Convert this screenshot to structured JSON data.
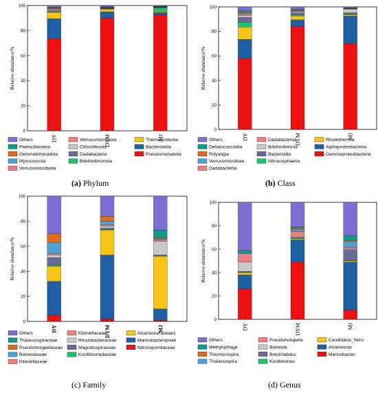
{
  "colors": {
    "Others": "#7b6fd4",
    "Patescibacteria": "#0f9b8a",
    "Gemmatimonadota": "#e06c1f",
    "Myxococcota": "#4f9fd3",
    "Verrucomicrobiota": "#f08080",
    "Chloroflexota": "#c8c8c8",
    "Dadabacteria": "#6a6a9a",
    "Bdellovibrionota": "#19c46b",
    "Thermoproteota": "#f5c518",
    "Bacteroidota": "#1f5fa3",
    "Pseudomonadota": "#ee1111",
    "Dehalococcoidia": "#0f9b8a",
    "Polyangia": "#e06c1f",
    "Verrucomicrobiae": "#4f9fd3",
    "Dadabacteriia": "#f08080",
    "Bdellovibrionia": "#c8c8c8",
    "Bacteroidia": "#6a6a9a",
    "Nitrososphaeria": "#19c46b",
    "Rhodothermia": "#f5c518",
    "Alphaproteobacteria": "#1f5fa3",
    "Gammaproteobacteria": "#ee1111"
  },
  "captions": {
    "a_letter": "(a)",
    "a_text": " Phylum",
    "b_letter": "(b)",
    "b_text": " Class",
    "c": "(c) Family",
    "d": "(d) Genus"
  },
  "chart_data": [
    {
      "type": "bar",
      "stacked": true,
      "panel": "a",
      "categories": [
        "DY",
        "DYM",
        "MJ"
      ],
      "ylabel": "Relative abundance/%",
      "ylim": [
        0,
        100
      ],
      "yticks": [
        0,
        20,
        40,
        60,
        80,
        100
      ],
      "series": [
        {
          "name": "Pseudomonadota",
          "values": [
            73.5,
            90,
            92.5
          ]
        },
        {
          "name": "Bacteroidota",
          "values": [
            16,
            5,
            2
          ]
        },
        {
          "name": "Thermoproteota",
          "values": [
            5,
            2,
            1
          ]
        },
        {
          "name": "Bdellovibrionota",
          "values": [
            0.6,
            0.4,
            2.8
          ]
        },
        {
          "name": "Dadabacteria",
          "values": [
            0.6,
            0.3,
            0.1
          ]
        },
        {
          "name": "Chloroflexota",
          "values": [
            0.7,
            0.3,
            0.2
          ]
        },
        {
          "name": "Verrucomicrobiota",
          "values": [
            0.9,
            0.3,
            0.2
          ]
        },
        {
          "name": "Myxococcota",
          "values": [
            0.5,
            0.2,
            0.2
          ]
        },
        {
          "name": "Gemmatimonadota",
          "values": [
            0.5,
            0.2,
            0.2
          ]
        },
        {
          "name": "Patescibacteria",
          "values": [
            0.5,
            0.3,
            0.2
          ]
        },
        {
          "name": "Others",
          "values": [
            1.2,
            1,
            0.6
          ]
        }
      ],
      "legend": [
        [
          "Others",
          "Verrucomicrobiota",
          "Thermoproteota"
        ],
        [
          "Patescibacteria",
          "Chloroflexota",
          "Bacteroidota"
        ],
        [
          "Gemmatimonadota",
          "Dadabacteria",
          "Pseudomonadota"
        ],
        [
          "Myxococcota",
          "Bdellovibrionota",
          ""
        ],
        [
          "Verrucomicrobiota",
          "",
          ""
        ]
      ]
    },
    {
      "type": "bar",
      "stacked": true,
      "panel": "b",
      "categories": [
        "DY",
        "DYM",
        "MJ"
      ],
      "ylabel": "Relative abundance/%",
      "ylim": [
        0,
        100
      ],
      "yticks": [
        0,
        20,
        40,
        60,
        80,
        100
      ],
      "series": [
        {
          "name": "Gammaproteobacteria",
          "values": [
            58,
            84,
            70
          ]
        },
        {
          "name": "Alphaproteobacteria",
          "values": [
            15.5,
            5.5,
            22.5
          ]
        },
        {
          "name": "Rhodothermia",
          "values": [
            10,
            3,
            1
          ]
        },
        {
          "name": "Nitrososphaeria",
          "values": [
            4,
            1,
            0.7
          ]
        },
        {
          "name": "Bacteroidia",
          "values": [
            4,
            1.5,
            1
          ]
        },
        {
          "name": "Bdellovibrionia",
          "values": [
            1.5,
            1,
            3
          ]
        },
        {
          "name": "Dadabacteriia",
          "values": [
            1,
            0.5,
            0.3
          ]
        },
        {
          "name": "Verrucomicrobiae",
          "values": [
            1,
            0.5,
            0.3
          ]
        },
        {
          "name": "Polyangia",
          "values": [
            1,
            0.5,
            0.2
          ]
        },
        {
          "name": "Dehalococcoidia",
          "values": [
            1,
            0.5,
            0.2
          ]
        },
        {
          "name": "Others",
          "values": [
            3,
            2,
            0.8
          ]
        }
      ],
      "legend": [
        [
          "Others",
          "Dadabacteriia",
          "Rhodothermia"
        ],
        [
          "Dehalococcoidia",
          "Bdellovibrionia",
          "Alphaproteobacteria"
        ],
        [
          "Polyangia",
          "Bacteroidia",
          "Gammaproteobacteria"
        ],
        [
          "Verrucomicrobiae",
          "Nitrososphaeria",
          ""
        ],
        [
          "Dadabacteriia",
          "",
          ""
        ]
      ]
    },
    {
      "type": "bar",
      "stacked": true,
      "panel": "c",
      "categories": [
        "DY",
        "DYM",
        "MJ"
      ],
      "ylabel": "Relative abundance/%",
      "ylim": [
        0,
        100
      ],
      "yticks": [
        0,
        20,
        40,
        60,
        80,
        100
      ],
      "series": [
        {
          "name": "Nitrosopumilaceae",
          "values": [
            5,
            2,
            1
          ]
        },
        {
          "name": "Marinobacteraceae",
          "values": [
            27,
            51,
            9
          ]
        },
        {
          "name": "Alcanivoracaceae1",
          "values": [
            12,
            20,
            42
          ]
        },
        {
          "name": "Kordiimonadaceae",
          "values": [
            1,
            0.5,
            0.5
          ]
        },
        {
          "name": "Magnetospiraceae",
          "values": [
            6,
            1,
            0.5
          ]
        },
        {
          "name": "Rhodobacteraceae",
          "values": [
            2,
            1.5,
            11
          ]
        },
        {
          "name": "Kiloniellaceae",
          "values": [
            1,
            1,
            1
          ]
        },
        {
          "name": "Balneolaceae",
          "values": [
            9,
            3,
            1
          ]
        },
        {
          "name": "Pseudohongiellaceae",
          "values": [
            7,
            4,
            1
          ]
        },
        {
          "name": "Thalassospiraceae",
          "values": [
            0,
            0,
            6
          ]
        },
        {
          "name": "Others",
          "values": [
            30,
            18,
            28
          ]
        }
      ],
      "legend": [
        [
          "Others",
          "Kiloniellaceae",
          "Alcanivoracaceae1"
        ],
        [
          "Thalassospiraceae",
          "Rhodobacteraceae",
          "Marinobacteraceae"
        ],
        [
          "Pseudohongiellaceae",
          "Magnetospiraceae",
          "Nitrosopumilaceae"
        ],
        [
          "Balneolaceae",
          "Kordiimonadaceae",
          ""
        ],
        [
          "Kiloniellaceae",
          "",
          ""
        ]
      ]
    },
    {
      "type": "bar",
      "stacked": true,
      "panel": "d",
      "categories": [
        "DY",
        "DYM",
        "MJ"
      ],
      "ylabel": "Relative abundance/%",
      "ylim": [
        0,
        100
      ],
      "yticks": [
        0,
        20,
        40,
        60,
        80,
        100
      ],
      "series": [
        {
          "name": "Marinobacter",
          "values": [
            26,
            49,
            8
          ]
        },
        {
          "name": "Alcanivorax",
          "values": [
            12,
            19,
            41
          ]
        },
        {
          "name": "Candidatus_Nitro",
          "values": [
            2,
            1,
            1
          ]
        },
        {
          "name": "Kordiimonas",
          "values": [
            0.5,
            0.5,
            0.5
          ]
        },
        {
          "name": "Brevirhabdus",
          "values": [
            0.5,
            0.5,
            9
          ]
        },
        {
          "name": "Balneola",
          "values": [
            8,
            1,
            1
          ]
        },
        {
          "name": "Pseudohongiella",
          "values": [
            7,
            4,
            1
          ]
        },
        {
          "name": "Thalassospira",
          "values": [
            1,
            2,
            5
          ]
        },
        {
          "name": "Thiomicrospira",
          "values": [
            0,
            1,
            1
          ]
        },
        {
          "name": "Methylophaga",
          "values": [
            2,
            1,
            4
          ]
        },
        {
          "name": "Others",
          "values": [
            41,
            21,
            28.5
          ]
        }
      ],
      "legend": [
        [
          "Others",
          "Pseudohongiella",
          "Candidatus_Nitro"
        ],
        [
          "Methylophaga",
          "Balneola",
          "Alcanivorax"
        ],
        [
          "Thiomicrospira",
          "Brevirhabdus",
          "Marinobacter"
        ],
        [
          "Thalassospira",
          "Kordiimonas",
          ""
        ]
      ]
    }
  ],
  "legend_colors": {
    "Others": "#7b6fd4",
    "Patescibacteria": "#0f9b8a",
    "Gemmatimonadota": "#e06c1f",
    "Myxococcota": "#4f9fd3",
    "Verrucomicrobiota": "#f08080",
    "Chloroflexota": "#c8c8c8",
    "Dadabacteria": "#6a6a9a",
    "Bdellovibrionota": "#19c46b",
    "Thermoproteota": "#f5c518",
    "Bacteroidota": "#1f5fa3",
    "Pseudomonadota": "#ee1111",
    "Dehalococcoidia": "#0f9b8a",
    "Polyangia": "#e06c1f",
    "Verrucomicrobiae": "#4f9fd3",
    "Dadabacteriia": "#f08080",
    "Bdellovibrionia": "#c8c8c8",
    "Bacteroidia": "#6a6a9a",
    "Nitrososphaeria": "#19c46b",
    "Rhodothermia": "#f5c518",
    "Alphaproteobacteria": "#1f5fa3",
    "Gammaproteobacteria": "#ee1111",
    "Thalassospiraceae": "#0f9b8a",
    "Pseudohongiellaceae": "#e06c1f",
    "Balneolaceae": "#4f9fd3",
    "Kiloniellaceae": "#f08080",
    "Rhodobacteraceae": "#c8c8c8",
    "Magnetospiraceae": "#6a6a9a",
    "Kordiimonadaceae": "#19c46b",
    "Alcanivoracaceae1": "#f5c518",
    "Marinobacteraceae": "#1f5fa3",
    "Nitrosopumilaceae": "#ee1111",
    "Methylophaga": "#0f9b8a",
    "Thiomicrospira": "#e06c1f",
    "Thalassospira": "#4f9fd3",
    "Pseudohongiella": "#f08080",
    "Balneola": "#c8c8c8",
    "Brevirhabdus": "#6a6a9a",
    "Kordiimonas": "#19c46b",
    "Candidatus_Nitro": "#f5c518",
    "Alcanivorax": "#1f5fa3",
    "Marinobacter": "#ee1111"
  }
}
